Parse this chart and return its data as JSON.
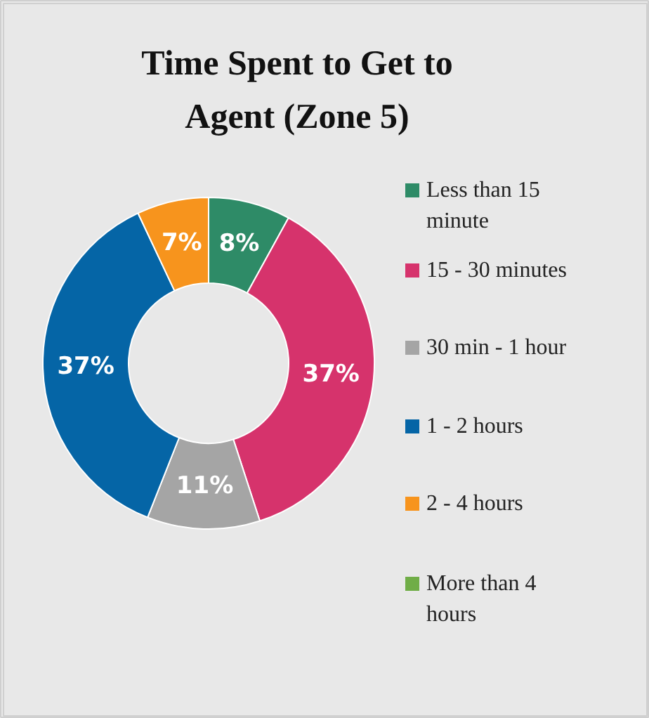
{
  "chart_data": {
    "type": "donut",
    "title": "Time Spent to Get to Agent (Zone 5)",
    "categories": [
      "Less than 15 minute",
      "15 - 30 minutes",
      "30 min - 1 hour",
      "1 - 2 hours",
      "2 - 4 hours",
      "More than 4 hours"
    ],
    "values": [
      8,
      37,
      11,
      37,
      7,
      0
    ],
    "colors": [
      "#2e8b67",
      "#d6336c",
      "#a5a5a5",
      "#0565a6",
      "#f7941d",
      "#70ad47"
    ],
    "value_labels": [
      "8%",
      "37%",
      "11%",
      "37%",
      "7%",
      null
    ],
    "legend": "right"
  }
}
